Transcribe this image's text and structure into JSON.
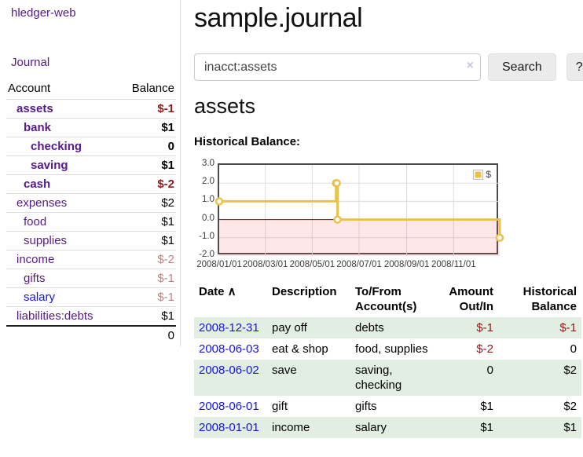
{
  "colors": {
    "purple": "#551a8b",
    "blue": "#1414e0",
    "negative": "#8b1a1a",
    "negative-dim": "#bd8181",
    "row-green": "#e3eee2",
    "gold": "#e8c24b",
    "zero-line": "#8b0000"
  },
  "brand": "hledger-web",
  "nav": {
    "journal": "Journal"
  },
  "sidebar": {
    "header": {
      "account": "Account",
      "balance": "Balance"
    },
    "rows": [
      {
        "name": "assets",
        "balance": "$-1",
        "level": 1,
        "bold": true
      },
      {
        "name": "bank",
        "balance": "$1",
        "level": 2,
        "bold": true
      },
      {
        "name": "checking",
        "balance": "0",
        "level": 3,
        "bold": true
      },
      {
        "name": "saving",
        "balance": "$1",
        "level": 3,
        "bold": true
      },
      {
        "name": "cash",
        "balance": "$-2",
        "level": 2,
        "bold": true
      },
      {
        "name": "expenses",
        "balance": "$2",
        "level": 1
      },
      {
        "name": "food",
        "balance": "$1",
        "level": 2
      },
      {
        "name": "supplies",
        "balance": "$1",
        "level": 2
      },
      {
        "name": "income",
        "balance": "$-2",
        "level": 1,
        "dim": true
      },
      {
        "name": "gifts",
        "balance": "$-1",
        "level": 2,
        "dim": true
      },
      {
        "name": "salary",
        "balance": "$-1",
        "level": 2,
        "dim": true,
        "unvisited": true
      },
      {
        "name": "liabilities:debts",
        "balance": "$1",
        "level": 1
      }
    ],
    "total": "0"
  },
  "main": {
    "title": "sample.journal",
    "search": {
      "value": "inacct:assets",
      "clear": "×",
      "button": "Search",
      "help": "?"
    },
    "heading": "assets",
    "chart_title": "Historical Balance:"
  },
  "chart_data": {
    "type": "line",
    "step": true,
    "title": "Historical Balance",
    "x_start": "2008-01-01",
    "x_end": "2008-12-31",
    "ylim": [
      -2,
      3
    ],
    "yticks": [
      "3.0",
      "2.0",
      "1.0",
      "0.0",
      "-1.0",
      "-2.0"
    ],
    "xticks": [
      "2008/01/01",
      "2008/03/01",
      "2008/05/01",
      "2008/07/01",
      "2008/09/01",
      "2008/11/01"
    ],
    "grid": true,
    "negative_region": true,
    "legend_position": "top-right",
    "series": [
      {
        "name": "$",
        "color": "#e8c24b",
        "points": [
          [
            "2008-01-01",
            1
          ],
          [
            "2008-06-01",
            2
          ],
          [
            "2008-06-02",
            2
          ],
          [
            "2008-06-03",
            0
          ],
          [
            "2008-12-31",
            -1
          ]
        ]
      }
    ]
  },
  "register": {
    "headers": [
      "Date",
      "Description",
      "To/From Account(s)",
      "Amount Out/In",
      "Historical Balance"
    ],
    "sort_icon": "∧",
    "rows": [
      {
        "date": "2008-12-31",
        "description": "pay off",
        "accounts": "debts",
        "amount": "$-1",
        "balance": "$-1"
      },
      {
        "date": "2008-06-03",
        "description": "eat & shop",
        "accounts": "food, supplies",
        "amount": "$-2",
        "balance": "0"
      },
      {
        "date": "2008-06-02",
        "description": "save",
        "accounts": "saving, checking",
        "amount": "0",
        "balance": "$2"
      },
      {
        "date": "2008-06-01",
        "description": "gift",
        "accounts": "gifts",
        "amount": "$1",
        "balance": "$2"
      },
      {
        "date": "2008-01-01",
        "description": "income",
        "accounts": "salary",
        "amount": "$1",
        "balance": "$1"
      }
    ]
  }
}
